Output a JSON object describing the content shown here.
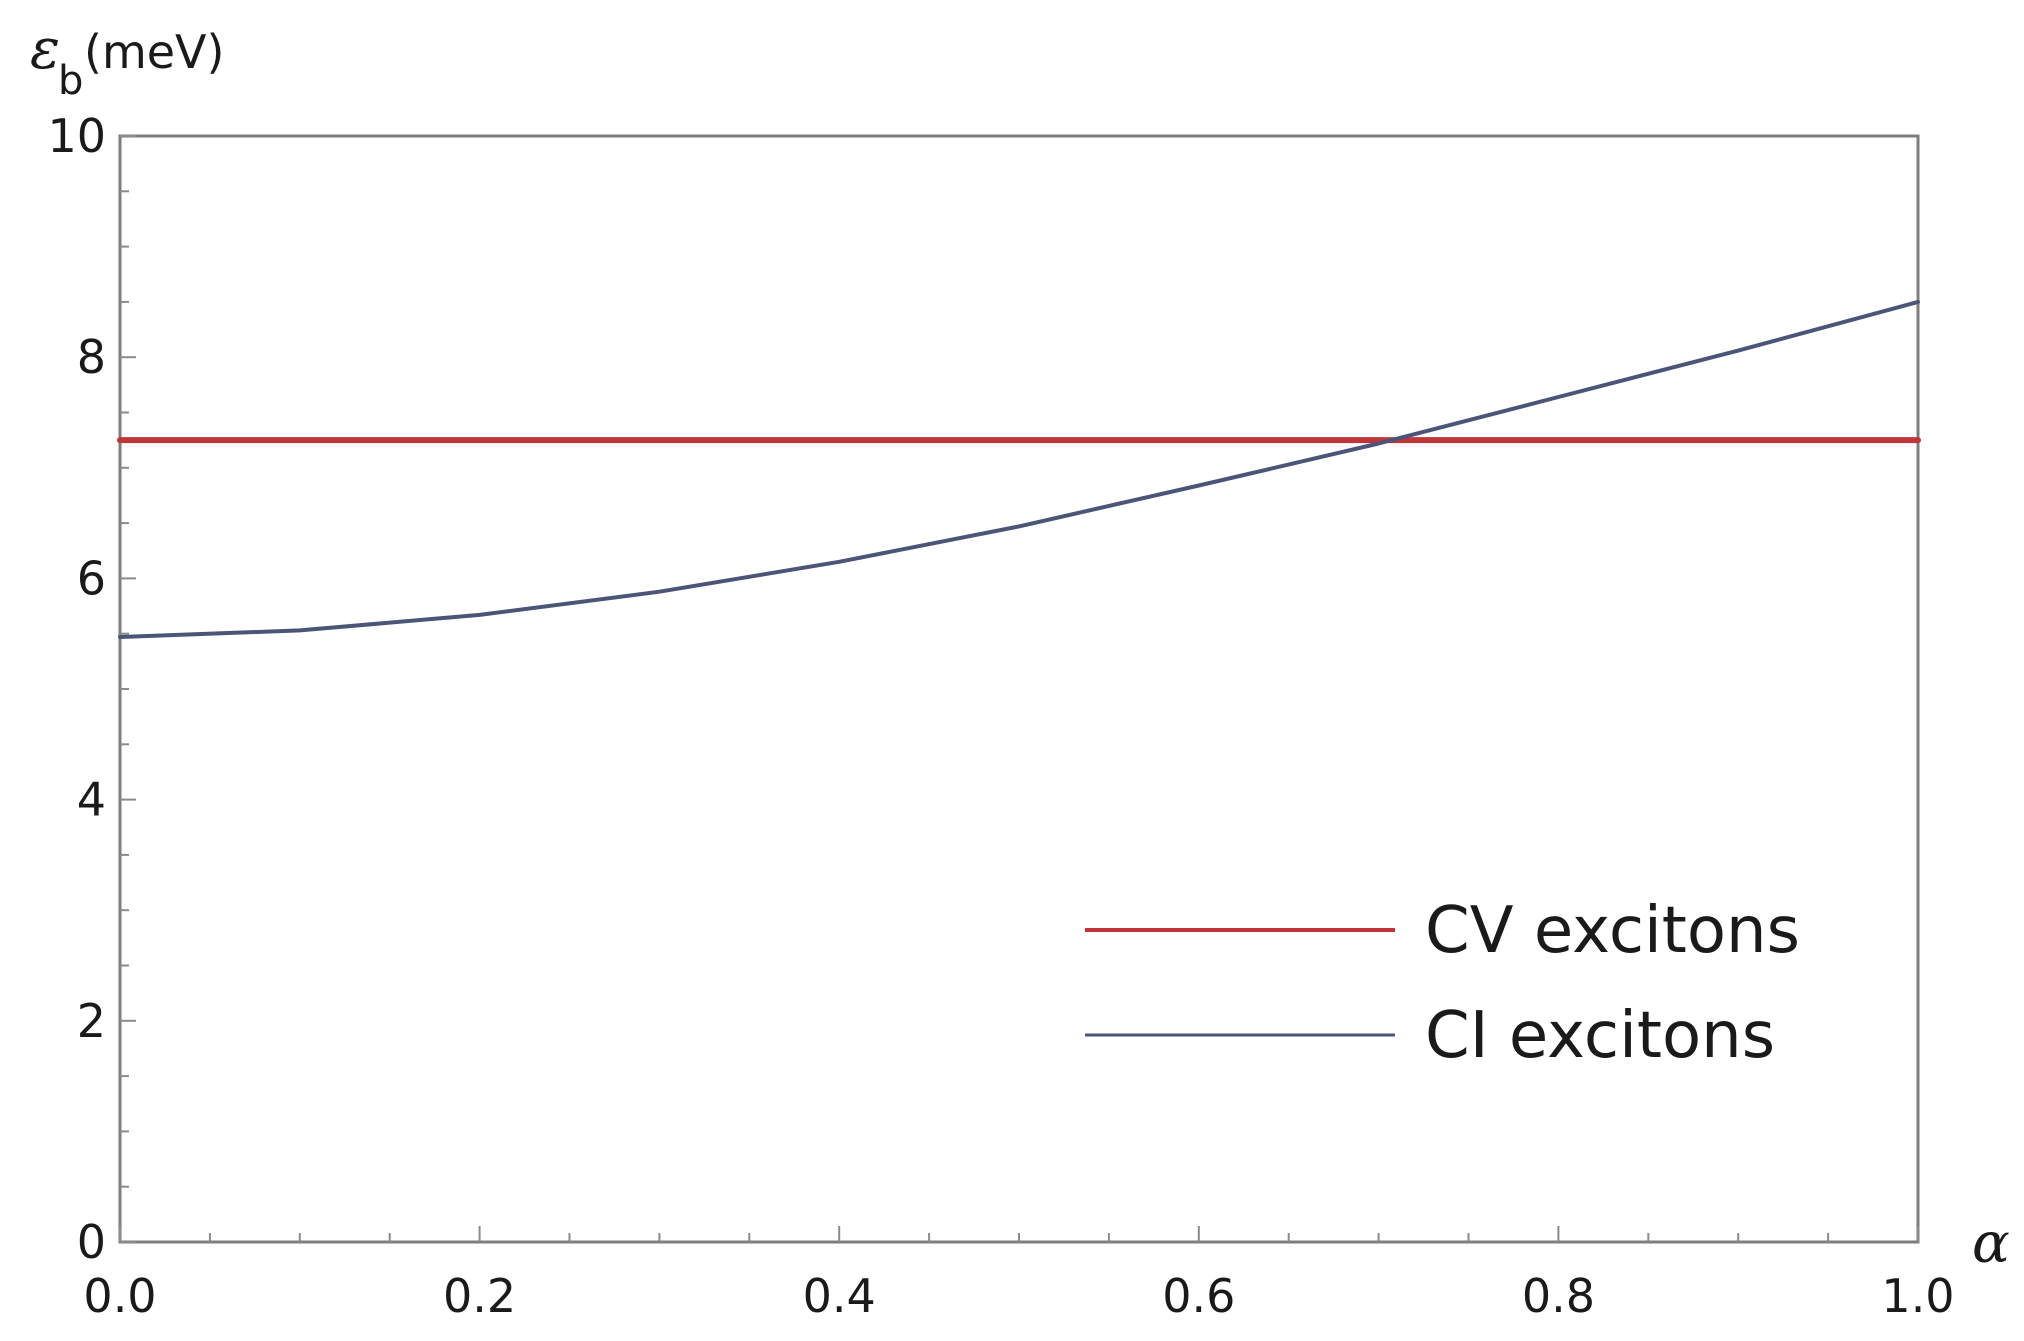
{
  "chart_data": {
    "type": "line",
    "xlabel": "α",
    "ylabel_symbol": "ε",
    "ylabel_subscript": "b",
    "ylabel_unit": "(meV)",
    "xlim": [
      0.0,
      1.0
    ],
    "ylim": [
      0,
      10
    ],
    "x_ticks": [
      "0.0",
      "0.2",
      "0.4",
      "0.6",
      "0.8",
      "1.0"
    ],
    "y_ticks": [
      "0",
      "2",
      "4",
      "6",
      "8",
      "10"
    ],
    "grid": false,
    "legend_position": "bottom-right",
    "series": [
      {
        "name": "CV excitons",
        "color": "#c0353a",
        "x": [
          0.0,
          1.0
        ],
        "y": [
          7.25,
          7.25
        ]
      },
      {
        "name": "CI excitons",
        "color": "#4a5577",
        "x": [
          0.0,
          0.1,
          0.2,
          0.3,
          0.4,
          0.5,
          0.6,
          0.7,
          0.8,
          0.9,
          1.0
        ],
        "y": [
          5.47,
          5.53,
          5.67,
          5.88,
          6.15,
          6.47,
          6.84,
          7.22,
          7.64,
          8.06,
          8.5
        ]
      }
    ]
  }
}
